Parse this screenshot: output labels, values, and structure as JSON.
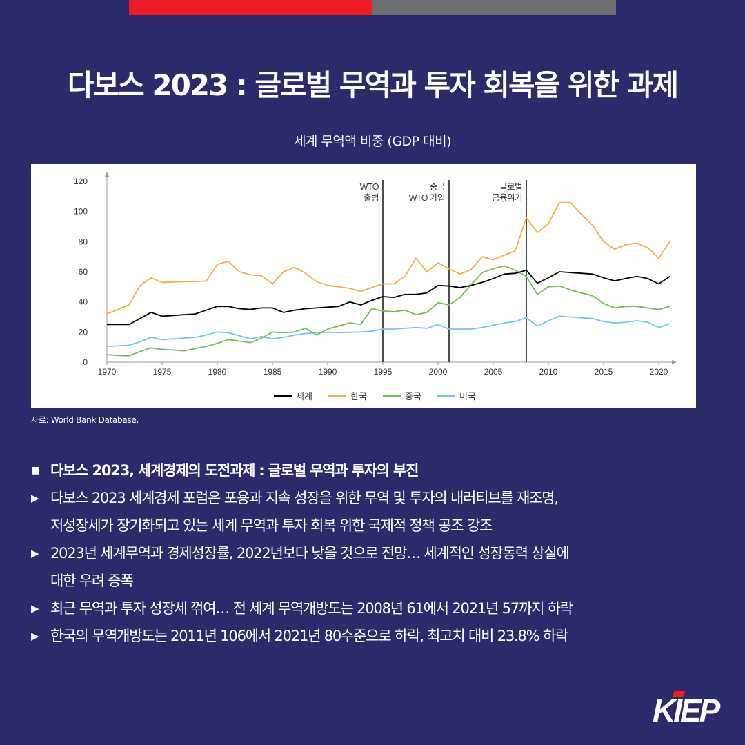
{
  "title": "다보스 2023 : 글로벌 무역과 투자 회복을 위한 과제",
  "source": "자료: World Bank Database.",
  "bullets": {
    "head": "다보스 2023, 세계경제의 도전과제 : 글로벌 무역과 투자의 부진",
    "items": [
      "다보스 2023 세계경제 포럼은 포용과 지속 성장을 위한 무역 및 투자의 내러티브를 재조명,",
      "저성장세가 장기화되고 있는 세계 무역과 투자 회복 위한 국제적 정책 공조 강조",
      "2023년 세계무역과 경제성장률, 2022년보다 낮을 것으로 전망… 세계적인 성장동력 상실에",
      "대한 우려 증폭",
      "최근 무역과 투자 성장세 꺾여… 전 세계 무역개방도는 2008년 61에서 2021년 57까지 하락",
      "한국의 무역개방도는 2011년 106에서 2021년 80수준으로 하락, 최고치 대비 23.8% 하락"
    ],
    "marker_head": "■",
    "marker_item": "▶"
  },
  "logo": "KIEP",
  "colors": {
    "background": "#2b2a6b",
    "accent_red": "#ee1c25",
    "accent_gray": "#6d6e71",
    "world": "#000000",
    "korea": "#f5b040",
    "china": "#70bf55",
    "usa": "#70c8ee"
  },
  "chart_data": {
    "type": "line",
    "title": "세계 무역액 비중 (GDP 대비)",
    "xlabel": "",
    "ylabel": "",
    "xlim": [
      1970,
      2021
    ],
    "ylim": [
      0,
      120
    ],
    "yticks": [
      0,
      20,
      40,
      60,
      80,
      100,
      120
    ],
    "xticks": [
      1970,
      1975,
      1980,
      1985,
      1990,
      1995,
      2000,
      2005,
      2010,
      2015,
      2020
    ],
    "legend_position": "bottom-center",
    "grid": false,
    "annotations": [
      {
        "x": 1995,
        "lines": [
          "WTO",
          "출범"
        ]
      },
      {
        "x": 2001,
        "lines": [
          "중국",
          "WTO 가입"
        ]
      },
      {
        "x": 2008,
        "lines": [
          "글로벌",
          "금융위기"
        ]
      }
    ],
    "x": [
      1970,
      1971,
      1972,
      1973,
      1974,
      1975,
      1976,
      1977,
      1978,
      1979,
      1980,
      1981,
      1982,
      1983,
      1984,
      1985,
      1986,
      1987,
      1988,
      1989,
      1990,
      1991,
      1992,
      1993,
      1994,
      1995,
      1996,
      1997,
      1998,
      1999,
      2000,
      2001,
      2002,
      2003,
      2004,
      2005,
      2006,
      2007,
      2008,
      2009,
      2010,
      2011,
      2012,
      2013,
      2014,
      2015,
      2016,
      2017,
      2018,
      2019,
      2020,
      2021
    ],
    "series": [
      {
        "name": "세계",
        "color": "#000000",
        "values": [
          25,
          25,
          25,
          29,
          33,
          30.5,
          31,
          31.5,
          32,
          34.5,
          37,
          37,
          35.5,
          35,
          36,
          36,
          33,
          34.5,
          35.5,
          36,
          36.5,
          37,
          40,
          38,
          41,
          43.5,
          43,
          45,
          45,
          46,
          51,
          50.5,
          49.5,
          51,
          53,
          55.5,
          58.5,
          59,
          61,
          52.5,
          56,
          60,
          59.5,
          59,
          58.5,
          56,
          54,
          55.5,
          57,
          55.5,
          52,
          57
        ]
      },
      {
        "name": "한국",
        "color": "#f5b040",
        "values": [
          32,
          35,
          38,
          51,
          56,
          53,
          53.2,
          53.4,
          53.6,
          53.8,
          65,
          67,
          60,
          58,
          57.5,
          52,
          60,
          63,
          59,
          53.5,
          51,
          50,
          49,
          47,
          49.5,
          52,
          52,
          57,
          69,
          60,
          66,
          62,
          58.5,
          61.5,
          70,
          68,
          71,
          74,
          96,
          86,
          92,
          106,
          106,
          98,
          91,
          80,
          75,
          78,
          79,
          76,
          69,
          80
        ]
      },
      {
        "name": "중국",
        "color": "#70bf55",
        "values": [
          5,
          4.5,
          4.2,
          7,
          9.5,
          8.5,
          8,
          7.5,
          9,
          10.5,
          12.5,
          15,
          14,
          13,
          16,
          20,
          19.5,
          20,
          22.5,
          18,
          22,
          24,
          26,
          25,
          35.5,
          34,
          33.5,
          34.5,
          31.5,
          33,
          39.5,
          38,
          43,
          51.5,
          59.5,
          62,
          64,
          61,
          57,
          45,
          50,
          50.5,
          48,
          46,
          44,
          39,
          36,
          37,
          37,
          36,
          35,
          37
        ]
      },
      {
        "name": "미국",
        "color": "#70c8ee",
        "values": [
          10.5,
          10.8,
          11.2,
          13.5,
          16.5,
          15,
          15.5,
          16,
          16.5,
          18,
          20,
          19.5,
          17.5,
          15.5,
          17,
          15.5,
          16.5,
          18,
          19,
          19.5,
          19.8,
          19.6,
          19.8,
          20,
          20.5,
          22,
          22,
          22.5,
          23,
          22.5,
          25,
          22,
          22,
          22,
          23,
          24.5,
          26,
          27,
          29.5,
          24,
          27.5,
          30.5,
          30,
          29.5,
          29,
          27,
          26,
          26.5,
          27.5,
          26.5,
          23,
          25.5
        ]
      }
    ]
  }
}
